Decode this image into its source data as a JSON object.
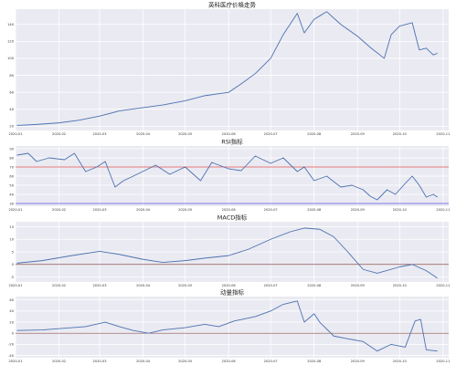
{
  "chart_data": [
    {
      "type": "line",
      "title": "英科医疗价格走势",
      "x_ticks": [
        "2020-01",
        "2020-02",
        "2020-03",
        "2020-04",
        "2020-05",
        "2020-06",
        "2020-07",
        "2020-08",
        "2020-09",
        "2020-10",
        "2020-11"
      ],
      "x_range": [
        "2020-01-01",
        "2020-11-05"
      ],
      "ylim": [
        15,
        158
      ],
      "y_ticks": [
        "20",
        "40",
        "60",
        "80",
        "100",
        "120",
        "140"
      ],
      "y_tick_values": [
        20,
        40,
        60,
        80,
        100,
        120,
        140
      ],
      "grid": true,
      "series": [
        {
          "color": "#4c72b0",
          "x": [
            "2020-01-02",
            "2020-01-15",
            "2020-02-01",
            "2020-02-15",
            "2020-03-01",
            "2020-03-15",
            "2020-04-01",
            "2020-04-15",
            "2020-05-01",
            "2020-05-15",
            "2020-06-01",
            "2020-06-10",
            "2020-06-20",
            "2020-07-01",
            "2020-07-10",
            "2020-07-20",
            "2020-07-25",
            "2020-08-01",
            "2020-08-05",
            "2020-08-10",
            "2020-08-20",
            "2020-09-01",
            "2020-09-10",
            "2020-09-20",
            "2020-09-25",
            "2020-10-01",
            "2020-10-10",
            "2020-10-15",
            "2020-10-20",
            "2020-10-25",
            "2020-10-28"
          ],
          "y": [
            21,
            22,
            24,
            27,
            32,
            38,
            42,
            45,
            50,
            56,
            60,
            70,
            82,
            100,
            128,
            153,
            130,
            146,
            150,
            155,
            140,
            126,
            113,
            100,
            128,
            138,
            142,
            110,
            112,
            104,
            106
          ]
        }
      ]
    },
    {
      "type": "line",
      "title": "RSI指标",
      "x_ticks": [
        "2020-01",
        "2020-02",
        "2020-03",
        "2020-04",
        "2020-05",
        "2020-06",
        "2020-07",
        "2020-08",
        "2020-09",
        "2020-10",
        "2020-11"
      ],
      "x_range": [
        "2020-01-01",
        "2020-11-05"
      ],
      "ylim": [
        27,
        93
      ],
      "y_ticks": [
        "30",
        "40",
        "50",
        "60",
        "70",
        "80",
        "90"
      ],
      "y_tick_values": [
        30,
        40,
        50,
        60,
        70,
        80,
        90
      ],
      "reference_lines": [
        {
          "value": 70,
          "color": "#e05050"
        },
        {
          "value": 30,
          "color": "#5050e0"
        }
      ],
      "grid": true,
      "series": [
        {
          "color": "#4c72b0",
          "x": [
            "2020-01-02",
            "2020-01-10",
            "2020-01-16",
            "2020-01-25",
            "2020-02-05",
            "2020-02-12",
            "2020-02-20",
            "2020-02-28",
            "2020-03-05",
            "2020-03-12",
            "2020-03-18",
            "2020-03-25",
            "2020-04-02",
            "2020-04-10",
            "2020-04-20",
            "2020-05-01",
            "2020-05-12",
            "2020-05-20",
            "2020-06-01",
            "2020-06-10",
            "2020-06-20",
            "2020-07-01",
            "2020-07-10",
            "2020-07-20",
            "2020-07-25",
            "2020-08-01",
            "2020-08-10",
            "2020-08-20",
            "2020-08-28",
            "2020-09-05",
            "2020-09-10",
            "2020-09-15",
            "2020-09-22",
            "2020-09-28",
            "2020-10-05",
            "2020-10-10",
            "2020-10-15",
            "2020-10-20",
            "2020-10-25",
            "2020-10-28"
          ],
          "y": [
            83,
            85,
            76,
            80,
            78,
            85,
            65,
            70,
            76,
            48,
            55,
            60,
            66,
            72,
            62,
            70,
            55,
            75,
            68,
            66,
            82,
            74,
            80,
            65,
            70,
            55,
            60,
            48,
            50,
            45,
            38,
            34,
            45,
            40,
            52,
            60,
            50,
            37,
            40,
            37
          ]
        }
      ]
    },
    {
      "type": "line",
      "title": "MACD指标",
      "x_ticks": [
        "2020-01",
        "2020-02",
        "2020-03",
        "2020-04",
        "2020-05",
        "2020-06",
        "2020-07",
        "2020-08",
        "2020-09",
        "2020-10",
        "2020-11"
      ],
      "x_range": [
        "2020-01-01",
        "2020-11-05"
      ],
      "ylim": [
        -7,
        17
      ],
      "y_ticks": [
        "-5",
        "0",
        "5",
        "10",
        "15"
      ],
      "y_tick_values": [
        -5,
        0,
        5,
        10,
        15
      ],
      "reference_lines": [
        {
          "value": 0,
          "color": "#8b4c4c"
        }
      ],
      "grid": true,
      "series": [
        {
          "color": "#4c72b0",
          "x": [
            "2020-01-02",
            "2020-01-20",
            "2020-02-10",
            "2020-03-01",
            "2020-03-15",
            "2020-04-01",
            "2020-04-15",
            "2020-05-01",
            "2020-05-15",
            "2020-06-01",
            "2020-06-15",
            "2020-07-01",
            "2020-07-15",
            "2020-07-25",
            "2020-08-05",
            "2020-08-15",
            "2020-08-25",
            "2020-09-05",
            "2020-09-15",
            "2020-10-01",
            "2020-10-10",
            "2020-10-20",
            "2020-10-28"
          ],
          "y": [
            0.5,
            1.5,
            3.5,
            5.2,
            4.0,
            2.0,
            0.8,
            1.5,
            2.5,
            3.5,
            6.0,
            10.0,
            13.0,
            14.5,
            14.0,
            11.0,
            5.0,
            -2.0,
            -3.5,
            -1.0,
            0.0,
            -2.5,
            -5.5
          ]
        }
      ]
    },
    {
      "type": "line",
      "title": "动量指标",
      "x_ticks": [
        "2020-01",
        "2020-02",
        "2020-03",
        "2020-04",
        "2020-05",
        "2020-06",
        "2020-07",
        "2020-08",
        "2020-09",
        "2020-10",
        "2020-11"
      ],
      "x_range": [
        "2020-01-01",
        "2020-11-05"
      ],
      "ylim": [
        -44,
        66
      ],
      "y_ticks": [
        "-40",
        "-20",
        "0",
        "20",
        "40",
        "60"
      ],
      "y_tick_values": [
        -40,
        -20,
        0,
        20,
        40,
        60
      ],
      "reference_lines": [
        {
          "value": 0,
          "color": "#8b4c4c"
        }
      ],
      "grid": true,
      "series": [
        {
          "color": "#4c72b0",
          "x": [
            "2020-01-02",
            "2020-01-20",
            "2020-02-05",
            "2020-02-20",
            "2020-03-05",
            "2020-03-15",
            "2020-03-25",
            "2020-04-05",
            "2020-04-15",
            "2020-05-01",
            "2020-05-15",
            "2020-05-25",
            "2020-06-05",
            "2020-06-20",
            "2020-07-01",
            "2020-07-10",
            "2020-07-20",
            "2020-07-25",
            "2020-08-01",
            "2020-08-05",
            "2020-08-15",
            "2020-08-25",
            "2020-09-05",
            "2020-09-15",
            "2020-09-25",
            "2020-10-05",
            "2020-10-12",
            "2020-10-16",
            "2020-10-20",
            "2020-10-28"
          ],
          "y": [
            5,
            6,
            9,
            12,
            20,
            12,
            5,
            0,
            6,
            10,
            16,
            12,
            22,
            30,
            40,
            52,
            58,
            20,
            35,
            20,
            -5,
            -10,
            -15,
            -32,
            -20,
            -25,
            22,
            25,
            -30,
            -32
          ]
        }
      ]
    }
  ]
}
